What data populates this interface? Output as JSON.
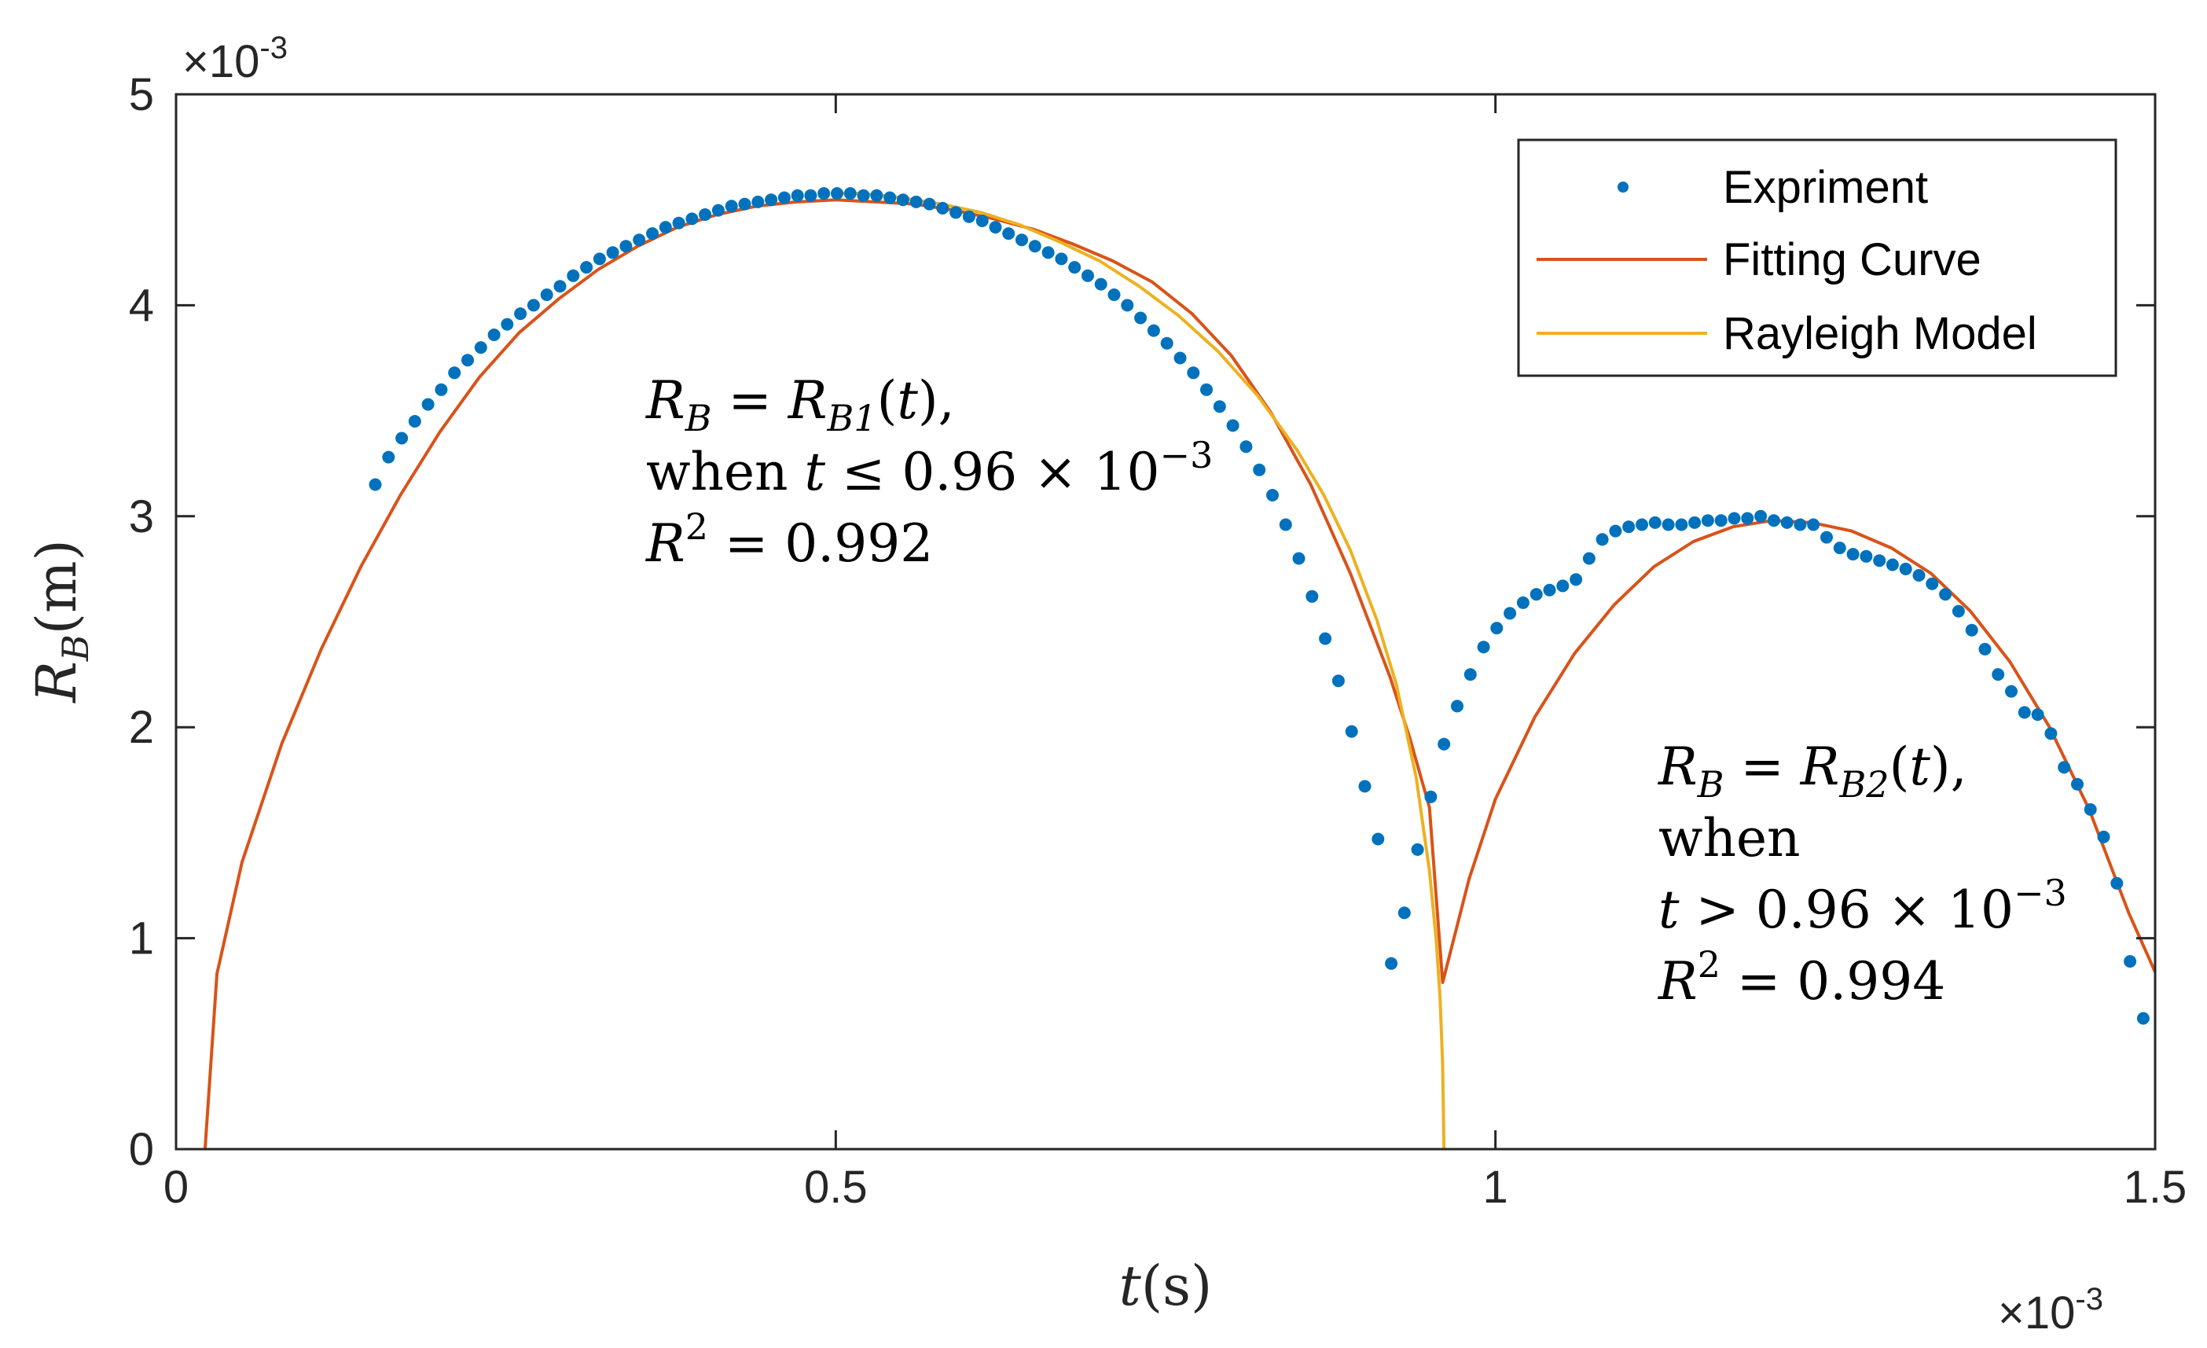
{
  "chart_data": {
    "type": "line",
    "x_multiplier": "×10",
    "x_exponent": "-3",
    "y_multiplier": "×10",
    "y_exponent": "-3",
    "xlim": [
      0,
      1.5
    ],
    "ylim": [
      0,
      5
    ],
    "xticks": [
      0,
      0.5,
      1,
      1.5
    ],
    "xtick_labels": [
      "0",
      "0.5",
      "1",
      "1.5"
    ],
    "yticks": [
      0,
      1,
      2,
      3,
      4,
      5
    ],
    "ytick_labels": [
      "0",
      "1",
      "2",
      "3",
      "4",
      "5"
    ],
    "xlabel": {
      "var": "t",
      "unit": "(s)"
    },
    "ylabel": {
      "var": "R",
      "sub": "B",
      "unit": "(m)"
    },
    "grid": false,
    "legend_position": "top-right",
    "colors": {
      "experiment": "#0072BD",
      "fitting": "#D95319",
      "rayleigh": "#EDB120",
      "axes": "#262626"
    },
    "series": [
      {
        "name": "Expriment",
        "kind": "scatter",
        "x": [
          0.151,
          0.161,
          0.171,
          0.181,
          0.191,
          0.201,
          0.211,
          0.221,
          0.231,
          0.241,
          0.251,
          0.261,
          0.271,
          0.281,
          0.291,
          0.301,
          0.311,
          0.321,
          0.331,
          0.341,
          0.351,
          0.361,
          0.371,
          0.381,
          0.391,
          0.401,
          0.411,
          0.421,
          0.431,
          0.441,
          0.451,
          0.461,
          0.471,
          0.481,
          0.491,
          0.501,
          0.511,
          0.521,
          0.531,
          0.541,
          0.551,
          0.561,
          0.571,
          0.581,
          0.591,
          0.601,
          0.611,
          0.621,
          0.631,
          0.641,
          0.651,
          0.661,
          0.671,
          0.681,
          0.691,
          0.701,
          0.711,
          0.721,
          0.731,
          0.741,
          0.751,
          0.761,
          0.771,
          0.781,
          0.791,
          0.801,
          0.811,
          0.821,
          0.831,
          0.841,
          0.851,
          0.861,
          0.871,
          0.881,
          0.891,
          0.901,
          0.911,
          0.921,
          0.931,
          0.941,
          0.951,
          0.961,
          0.971,
          0.981,
          0.991,
          1.001,
          1.011,
          1.021,
          1.031,
          1.041,
          1.051,
          1.061,
          1.071,
          1.081,
          1.091,
          1.101,
          1.111,
          1.121,
          1.131,
          1.141,
          1.151,
          1.161,
          1.171,
          1.181,
          1.191,
          1.201,
          1.211,
          1.221,
          1.231,
          1.241,
          1.251,
          1.261,
          1.271,
          1.281,
          1.291,
          1.301,
          1.311,
          1.321,
          1.331,
          1.341,
          1.351,
          1.361,
          1.371,
          1.381,
          1.391,
          1.401,
          1.411,
          1.421,
          1.431,
          1.441,
          1.451,
          1.461,
          1.471,
          1.481,
          1.491
        ],
        "y": [
          3.15,
          3.28,
          3.37,
          3.45,
          3.53,
          3.6,
          3.68,
          3.74,
          3.8,
          3.86,
          3.91,
          3.96,
          4.0,
          4.05,
          4.09,
          4.14,
          4.18,
          4.22,
          4.25,
          4.28,
          4.31,
          4.34,
          4.37,
          4.39,
          4.41,
          4.43,
          4.45,
          4.47,
          4.48,
          4.49,
          4.5,
          4.51,
          4.52,
          4.52,
          4.53,
          4.53,
          4.53,
          4.52,
          4.52,
          4.51,
          4.5,
          4.49,
          4.48,
          4.46,
          4.44,
          4.42,
          4.4,
          4.37,
          4.34,
          4.31,
          4.28,
          4.25,
          4.22,
          4.18,
          4.14,
          4.1,
          4.05,
          4.0,
          3.94,
          3.88,
          3.82,
          3.75,
          3.68,
          3.6,
          3.52,
          3.43,
          3.33,
          3.22,
          3.1,
          2.96,
          2.8,
          2.62,
          2.42,
          2.22,
          1.98,
          1.72,
          1.47,
          0.88,
          1.12,
          1.42,
          1.67,
          1.92,
          2.1,
          2.25,
          2.38,
          2.47,
          2.54,
          2.59,
          2.63,
          2.65,
          2.67,
          2.7,
          2.8,
          2.89,
          2.93,
          2.95,
          2.96,
          2.97,
          2.96,
          2.96,
          2.97,
          2.98,
          2.98,
          2.99,
          2.99,
          3.0,
          2.98,
          2.97,
          2.96,
          2.96,
          2.9,
          2.85,
          2.82,
          2.81,
          2.79,
          2.77,
          2.75,
          2.72,
          2.68,
          2.63,
          2.55,
          2.46,
          2.37,
          2.25,
          2.17,
          2.07,
          2.06,
          1.97,
          1.81,
          1.73,
          1.61,
          1.48,
          1.26,
          0.89,
          0.62
        ]
      },
      {
        "name": "Fitting Curve",
        "kind": "line",
        "x": [
          0.022,
          0.031,
          0.05,
          0.08,
          0.11,
          0.14,
          0.17,
          0.2,
          0.23,
          0.26,
          0.29,
          0.32,
          0.35,
          0.38,
          0.41,
          0.44,
          0.47,
          0.5,
          0.53,
          0.56,
          0.59,
          0.62,
          0.65,
          0.68,
          0.71,
          0.74,
          0.77,
          0.8,
          0.83,
          0.86,
          0.89,
          0.92,
          0.935,
          0.95,
          0.96,
          0.98,
          1.0,
          1.03,
          1.06,
          1.09,
          1.12,
          1.15,
          1.18,
          1.21,
          1.24,
          1.27,
          1.3,
          1.33,
          1.36,
          1.39,
          1.42,
          1.45,
          1.48,
          1.5
        ],
        "y": [
          0,
          0.83,
          1.36,
          1.92,
          2.37,
          2.76,
          3.1,
          3.4,
          3.66,
          3.87,
          4.03,
          4.17,
          4.28,
          4.37,
          4.43,
          4.47,
          4.49,
          4.5,
          4.49,
          4.48,
          4.45,
          4.41,
          4.36,
          4.29,
          4.21,
          4.11,
          3.96,
          3.76,
          3.49,
          3.15,
          2.73,
          2.24,
          1.95,
          1.62,
          0.79,
          1.28,
          1.66,
          2.05,
          2.35,
          2.58,
          2.76,
          2.88,
          2.95,
          2.98,
          2.97,
          2.93,
          2.85,
          2.73,
          2.55,
          2.31,
          2.0,
          1.61,
          1.12,
          0.84
        ]
      },
      {
        "name": "Rayleigh Model",
        "kind": "line",
        "x": [
          0.503,
          0.52,
          0.55,
          0.58,
          0.61,
          0.64,
          0.67,
          0.7,
          0.73,
          0.76,
          0.79,
          0.82,
          0.85,
          0.87,
          0.89,
          0.91,
          0.925,
          0.94,
          0.95,
          0.955,
          0.958,
          0.96,
          0.961
        ],
        "y": [
          4.53,
          4.53,
          4.51,
          4.48,
          4.44,
          4.38,
          4.3,
          4.21,
          4.09,
          3.95,
          3.78,
          3.57,
          3.31,
          3.1,
          2.84,
          2.51,
          2.2,
          1.76,
          1.32,
          1.0,
          0.72,
          0.4,
          0.0
        ]
      }
    ],
    "annotations": [
      {
        "lines": [
          {
            "parts": [
              {
                "t": "R",
                "it": true
              },
              {
                "t": "B",
                "sub": true,
                "it": true
              },
              {
                "t": " = "
              },
              {
                "t": "R",
                "it": true
              },
              {
                "t": "B1",
                "sub": true,
                "it": true
              },
              {
                "t": "("
              },
              {
                "t": "t",
                "it": true
              },
              {
                "t": "),"
              }
            ]
          },
          {
            "parts": [
              {
                "t": "when "
              },
              {
                "t": "t",
                "it": true
              },
              {
                "t": " ≤ 0.96 × 10"
              },
              {
                "t": "−3",
                "sup": true
              }
            ]
          },
          {
            "parts": [
              {
                "t": "R",
                "it": true
              },
              {
                "t": "2",
                "sup": true
              },
              {
                "t": " = 0.992"
              }
            ]
          }
        ]
      },
      {
        "lines": [
          {
            "parts": [
              {
                "t": "R",
                "it": true
              },
              {
                "t": "B",
                "sub": true,
                "it": true
              },
              {
                "t": " = "
              },
              {
                "t": "R",
                "it": true
              },
              {
                "t": "B2",
                "sub": true,
                "it": true
              },
              {
                "t": "("
              },
              {
                "t": "t",
                "it": true
              },
              {
                "t": "),"
              }
            ]
          },
          {
            "parts": [
              {
                "t": "when"
              }
            ]
          },
          {
            "parts": [
              {
                "t": "t",
                "it": true
              },
              {
                "t": " > 0.96 × 10"
              },
              {
                "t": "−3",
                "sup": true
              }
            ]
          },
          {
            "parts": [
              {
                "t": "R",
                "it": true
              },
              {
                "t": "2",
                "sup": true
              },
              {
                "t": " = 0.994"
              }
            ]
          }
        ]
      }
    ]
  }
}
